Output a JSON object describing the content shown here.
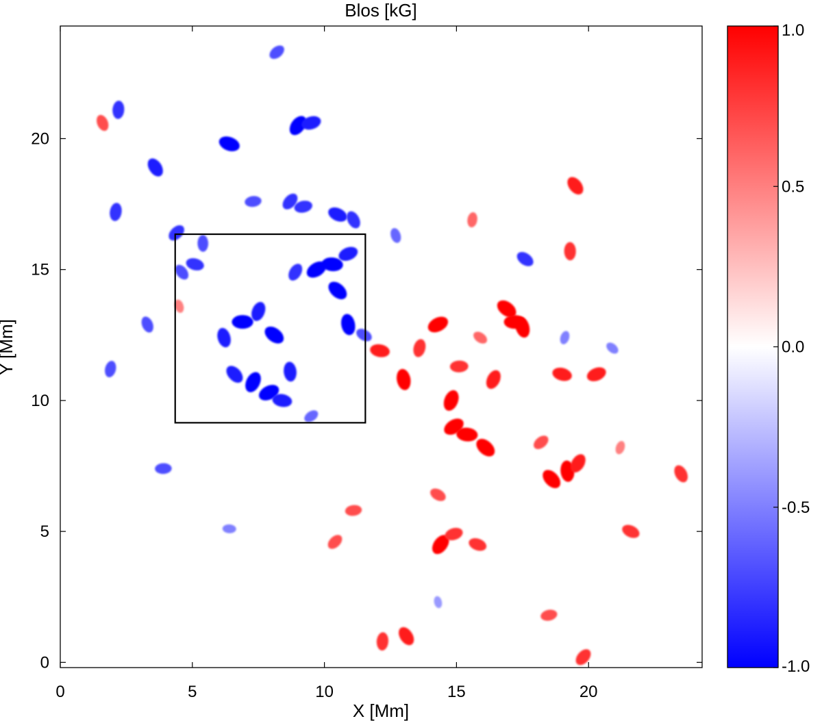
{
  "chart_data": {
    "type": "heatmap",
    "title": "Blos [kG]",
    "xlabel": "X [Mm]",
    "ylabel": "Y [Mm]",
    "xlim": [
      0,
      24.3
    ],
    "ylim": [
      -0.2,
      24.3
    ],
    "x_ticks": [
      0,
      5,
      10,
      15,
      20
    ],
    "x_tick_labels": [
      "0",
      "5",
      "10",
      "15",
      "20"
    ],
    "y_ticks": [
      0,
      5,
      10,
      15,
      20
    ],
    "y_tick_labels": [
      "0",
      "5",
      "10",
      "15",
      "20"
    ],
    "colorbar": {
      "range": [
        -1.0,
        1.0
      ],
      "ticks": [
        1.0,
        0.5,
        0.0,
        -0.5,
        -1.0
      ],
      "tick_labels": [
        "1.0",
        "0.5",
        "0.0",
        "-0.5",
        "-1.0"
      ],
      "colors": {
        "min": "#0000ff",
        "mid": "#ffffff",
        "max": "#ff0000"
      }
    },
    "highlight_box": {
      "x0": 4.35,
      "x1": 11.55,
      "y0": 9.15,
      "y1": 16.35
    },
    "features": {
      "negative": [
        {
          "x": 6.9,
          "y": 13.0,
          "v": -1
        },
        {
          "x": 8.1,
          "y": 12.5,
          "v": -1
        },
        {
          "x": 6.2,
          "y": 12.4,
          "v": -0.9
        },
        {
          "x": 7.5,
          "y": 13.4,
          "v": -0.9
        },
        {
          "x": 9.7,
          "y": 15.0,
          "v": -1
        },
        {
          "x": 10.3,
          "y": 15.2,
          "v": -1
        },
        {
          "x": 10.5,
          "y": 14.2,
          "v": -1
        },
        {
          "x": 10.9,
          "y": 12.9,
          "v": -1
        },
        {
          "x": 7.3,
          "y": 10.7,
          "v": -1
        },
        {
          "x": 7.9,
          "y": 10.3,
          "v": -1
        },
        {
          "x": 8.4,
          "y": 10.0,
          "v": -0.9
        },
        {
          "x": 6.6,
          "y": 11.0,
          "v": -0.9
        },
        {
          "x": 8.7,
          "y": 11.1,
          "v": -0.9
        },
        {
          "x": 8.9,
          "y": 14.9,
          "v": -0.8
        },
        {
          "x": 10.9,
          "y": 15.6,
          "v": -0.9
        },
        {
          "x": 5.1,
          "y": 15.2,
          "v": -0.8
        },
        {
          "x": 4.6,
          "y": 14.9,
          "v": -0.7
        },
        {
          "x": 5.4,
          "y": 16.0,
          "v": -0.7
        },
        {
          "x": 9.0,
          "y": 20.5,
          "v": -1
        },
        {
          "x": 9.5,
          "y": 20.6,
          "v": -0.9
        },
        {
          "x": 6.4,
          "y": 19.8,
          "v": -1
        },
        {
          "x": 3.6,
          "y": 18.9,
          "v": -0.9
        },
        {
          "x": 2.2,
          "y": 21.1,
          "v": -0.8
        },
        {
          "x": 8.7,
          "y": 17.6,
          "v": -0.8
        },
        {
          "x": 9.2,
          "y": 17.4,
          "v": -0.8
        },
        {
          "x": 10.5,
          "y": 17.1,
          "v": -0.9
        },
        {
          "x": 11.1,
          "y": 16.9,
          "v": -0.8
        },
        {
          "x": 2.1,
          "y": 17.2,
          "v": -0.8
        },
        {
          "x": 4.4,
          "y": 16.4,
          "v": -0.8
        },
        {
          "x": 7.3,
          "y": 17.6,
          "v": -0.7
        },
        {
          "x": 11.5,
          "y": 12.5,
          "v": -0.7
        },
        {
          "x": 3.3,
          "y": 12.9,
          "v": -0.7
        },
        {
          "x": 1.9,
          "y": 11.2,
          "v": -0.7
        },
        {
          "x": 8.2,
          "y": 23.3,
          "v": -0.7
        },
        {
          "x": 3.9,
          "y": 7.4,
          "v": -0.7
        },
        {
          "x": 17.6,
          "y": 15.4,
          "v": -0.8
        },
        {
          "x": 12.7,
          "y": 16.3,
          "v": -0.6
        },
        {
          "x": 19.1,
          "y": 12.4,
          "v": -0.5
        },
        {
          "x": 9.5,
          "y": 9.4,
          "v": -0.6
        },
        {
          "x": 6.4,
          "y": 5.1,
          "v": -0.5
        },
        {
          "x": 20.9,
          "y": 12.0,
          "v": -0.5
        },
        {
          "x": 14.3,
          "y": 2.3,
          "v": -0.4
        }
      ],
      "positive": [
        {
          "x": 17.2,
          "y": 13.0,
          "v": 1
        },
        {
          "x": 16.9,
          "y": 13.5,
          "v": 1
        },
        {
          "x": 17.5,
          "y": 12.8,
          "v": 1
        },
        {
          "x": 14.8,
          "y": 10.0,
          "v": 1
        },
        {
          "x": 14.9,
          "y": 9.0,
          "v": 1
        },
        {
          "x": 15.4,
          "y": 8.7,
          "v": 1
        },
        {
          "x": 16.1,
          "y": 8.2,
          "v": 1
        },
        {
          "x": 13.0,
          "y": 10.8,
          "v": 1
        },
        {
          "x": 16.4,
          "y": 10.8,
          "v": 0.9
        },
        {
          "x": 14.3,
          "y": 12.9,
          "v": 1
        },
        {
          "x": 12.1,
          "y": 11.9,
          "v": 0.9
        },
        {
          "x": 18.6,
          "y": 7.0,
          "v": 1
        },
        {
          "x": 19.2,
          "y": 7.3,
          "v": 1
        },
        {
          "x": 19.6,
          "y": 7.6,
          "v": 0.9
        },
        {
          "x": 20.3,
          "y": 11.0,
          "v": 0.9
        },
        {
          "x": 19.0,
          "y": 11.0,
          "v": 0.9
        },
        {
          "x": 19.5,
          "y": 18.2,
          "v": 0.9
        },
        {
          "x": 19.3,
          "y": 15.7,
          "v": 0.8
        },
        {
          "x": 14.4,
          "y": 4.5,
          "v": 1
        },
        {
          "x": 14.9,
          "y": 4.9,
          "v": 0.8
        },
        {
          "x": 15.8,
          "y": 4.5,
          "v": 0.8
        },
        {
          "x": 13.1,
          "y": 1.0,
          "v": 0.9
        },
        {
          "x": 12.2,
          "y": 0.8,
          "v": 0.8
        },
        {
          "x": 19.8,
          "y": 0.2,
          "v": 0.8
        },
        {
          "x": 18.5,
          "y": 1.8,
          "v": 0.7
        },
        {
          "x": 21.6,
          "y": 5.0,
          "v": 0.8
        },
        {
          "x": 23.5,
          "y": 7.2,
          "v": 0.8
        },
        {
          "x": 15.6,
          "y": 16.9,
          "v": 0.6
        },
        {
          "x": 10.4,
          "y": 4.6,
          "v": 0.7
        },
        {
          "x": 11.1,
          "y": 5.8,
          "v": 0.7
        },
        {
          "x": 14.3,
          "y": 6.4,
          "v": 0.7
        },
        {
          "x": 1.6,
          "y": 20.6,
          "v": 0.7
        },
        {
          "x": 13.6,
          "y": 12.0,
          "v": 0.8
        },
        {
          "x": 18.2,
          "y": 8.4,
          "v": 0.7
        },
        {
          "x": 15.1,
          "y": 11.3,
          "v": 0.8
        },
        {
          "x": 15.9,
          "y": 12.4,
          "v": 0.6
        },
        {
          "x": 4.5,
          "y": 13.6,
          "v": 0.5
        },
        {
          "x": 21.2,
          "y": 8.2,
          "v": 0.5
        }
      ]
    }
  }
}
